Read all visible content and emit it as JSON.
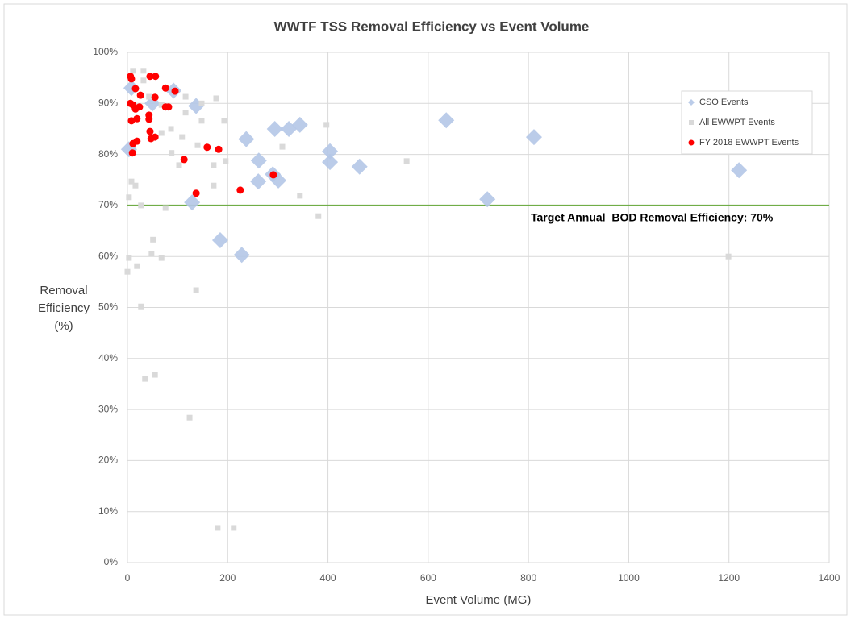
{
  "chart_data": {
    "type": "scatter",
    "title": "WWTF TSS Removal Efficiency vs Event Volume",
    "x_label": "Event Volume (MG)",
    "y_label": "Removal Efficiency (%)",
    "xlim": [
      0,
      1400
    ],
    "xticks": [
      0,
      200,
      400,
      600,
      800,
      1000,
      1200,
      1400
    ],
    "ylim": [
      0,
      100
    ],
    "yticks": [
      {
        "value": 0,
        "label": "0%"
      },
      {
        "value": 10,
        "label": "10%"
      },
      {
        "value": 20,
        "label": "20%"
      },
      {
        "value": 30,
        "label": "30%"
      },
      {
        "value": 40,
        "label": "40%"
      },
      {
        "value": 50,
        "label": "50%"
      },
      {
        "value": 60,
        "label": "60%"
      },
      {
        "value": 70,
        "label": "70%"
      },
      {
        "value": 80,
        "label": "80%"
      },
      {
        "value": 90,
        "label": "90%"
      },
      {
        "value": 100,
        "label": "100%"
      }
    ],
    "grid": true,
    "legend": "upper right",
    "reference_line": {
      "value": 70,
      "color": "#70ad47",
      "label": "Target Annual  BOD Removal Efficiency: 70%"
    },
    "series": [
      {
        "name": "CSO Events",
        "color": "#b4c7e7",
        "marker": "diamond",
        "x": [
          3,
          8,
          50,
          92,
          137,
          129,
          185,
          228,
          237,
          262,
          261,
          290,
          301,
          294,
          322,
          344,
          404,
          404,
          463,
          636,
          718,
          811,
          1220
        ],
        "values": [
          81,
          93,
          90,
          92.5,
          89.5,
          70.6,
          63.2,
          60.3,
          83,
          78.8,
          74.7,
          76.1,
          74.9,
          85,
          85,
          85.8,
          80.6,
          78.5,
          77.6,
          86.7,
          71.2,
          83.4,
          76.9
        ]
      },
      {
        "name": "All EWWPT Events",
        "color": "#d9d9d9",
        "marker": "square",
        "x": [
          11,
          32,
          32,
          43,
          68,
          116,
          177,
          148,
          116,
          87,
          68,
          109,
          88,
          103,
          140,
          172,
          172,
          196,
          193,
          309,
          397,
          557,
          381,
          344,
          8,
          16,
          27,
          51,
          48,
          68,
          3,
          19,
          0,
          27,
          137,
          35,
          55,
          124,
          3,
          76,
          1199,
          180,
          212,
          148
        ],
        "values": [
          96.4,
          96.4,
          94.5,
          91.3,
          89.7,
          91.3,
          91,
          90,
          88.2,
          85,
          84.2,
          83.4,
          80.3,
          77.9,
          81.8,
          77.9,
          73.9,
          78.7,
          86.6,
          81.5,
          85.8,
          78.7,
          67.9,
          71.9,
          74.7,
          73.9,
          70,
          63.3,
          60.5,
          59.7,
          59.7,
          58.1,
          57,
          50.2,
          53.4,
          36,
          36.8,
          28.4,
          71.6,
          69.5,
          60,
          6.8,
          6.8,
          86.6
        ]
      },
      {
        "name": "FY 2018 EWWPT Events",
        "color": "#ff0000",
        "marker": "circle",
        "x": [
          6,
          8,
          16,
          45,
          56,
          26,
          6,
          11,
          16,
          8,
          19,
          43,
          43,
          55,
          76,
          95,
          76,
          82,
          45,
          47,
          55,
          19,
          11,
          10,
          113,
          159,
          182,
          137,
          225,
          291,
          24
        ],
        "values": [
          95.3,
          94.8,
          92.9,
          95.3,
          95.3,
          91.6,
          90,
          89.7,
          88.9,
          86.6,
          87,
          86.9,
          87.7,
          91.2,
          93,
          92.4,
          89.3,
          89.3,
          84.5,
          83.1,
          83.4,
          82.6,
          82.1,
          80.3,
          79,
          81.4,
          81,
          72.4,
          73,
          76,
          89.3
        ]
      }
    ]
  }
}
